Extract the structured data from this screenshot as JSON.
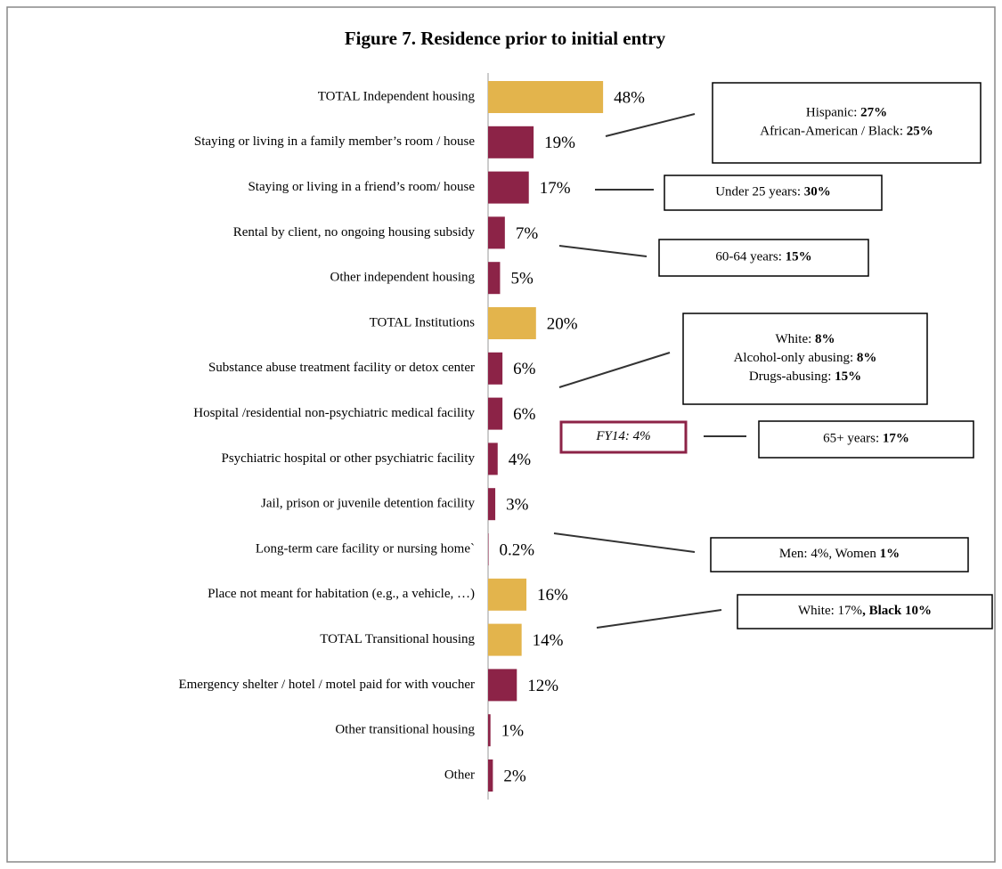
{
  "chart_data": {
    "type": "barh",
    "title": "Figure 7. Residence prior to initial entry",
    "categories": [
      "TOTAL Independent housing",
      "Staying or living in a family member’s room / house",
      "Staying or living in a friend’s room/ house",
      "Rental by client, no ongoing housing subsidy",
      "Other independent housing",
      "TOTAL Institutions",
      "Substance abuse treatment facility or detox center",
      "Hospital /residential non-psychiatric medical facility",
      "Psychiatric hospital or other psychiatric facility",
      "Jail, prison or juvenile detention facility",
      "Long-term care facility or nursing home`",
      "Place not meant for habitation (e.g., a vehicle, …)",
      "TOTAL Transitional housing",
      "Emergency shelter / hotel / motel paid for with voucher",
      "Other transitional housing",
      "Other"
    ],
    "values": [
      48,
      19,
      17,
      7,
      5,
      20,
      6,
      6,
      4,
      3,
      0.2,
      16,
      14,
      12,
      1,
      2
    ],
    "value_labels": [
      "48%",
      "19%",
      "17%",
      "7%",
      "5%",
      "20%",
      "6%",
      "6%",
      "4%",
      "3%",
      "0.2%",
      "16%",
      "14%",
      "12%",
      "1%",
      "2%"
    ],
    "colors": [
      "#e3b44c",
      "#8c2347",
      "#8c2347",
      "#8c2347",
      "#8c2347",
      "#e3b44c",
      "#8c2347",
      "#8c2347",
      "#8c2347",
      "#8c2347",
      "#8c2347",
      "#e3b44c",
      "#e3b44c",
      "#8c2347",
      "#8c2347",
      "#8c2347"
    ],
    "xlim": [
      0,
      100
    ],
    "annotations": [
      {
        "lines": [
          [
            {
              "text": "Hispanic: ",
              "bold": false
            },
            {
              "text": "27%",
              "bold": true
            }
          ],
          [
            {
              "text": "African-American / Black: ",
              "bold": false
            },
            {
              "text": "25%",
              "bold": true
            }
          ]
        ]
      },
      {
        "lines": [
          [
            {
              "text": "Under 25 years: ",
              "bold": false
            },
            {
              "text": "30%",
              "bold": true
            }
          ]
        ]
      },
      {
        "lines": [
          [
            {
              "text": "60-64 years: ",
              "bold": false
            },
            {
              "text": "15%",
              "bold": true
            }
          ]
        ]
      },
      {
        "lines": [
          [
            {
              "text": "White: ",
              "bold": false
            },
            {
              "text": "8%",
              "bold": true
            }
          ],
          [
            {
              "text": "Alcohol-only abusing: ",
              "bold": false
            },
            {
              "text": "8%",
              "bold": true
            }
          ],
          [
            {
              "text": "Drugs-abusing: ",
              "bold": false
            },
            {
              "text": "15%",
              "bold": true
            }
          ]
        ]
      },
      {
        "lines": [
          [
            {
              "text": "FY14: 4%",
              "bold": false,
              "italic": true
            }
          ]
        ]
      },
      {
        "lines": [
          [
            {
              "text": "65+ years: ",
              "bold": false
            },
            {
              "text": "17%",
              "bold": true
            }
          ]
        ]
      },
      {
        "lines": [
          [
            {
              "text": "Men: 4%, Women ",
              "bold": false
            },
            {
              "text": "1%",
              "bold": true
            }
          ]
        ]
      },
      {
        "lines": [
          [
            {
              "text": "White: 17%",
              "bold": false
            },
            {
              "text": ", Black ",
              "bold": true
            },
            {
              "text": "10%",
              "bold": true
            }
          ]
        ]
      }
    ]
  }
}
